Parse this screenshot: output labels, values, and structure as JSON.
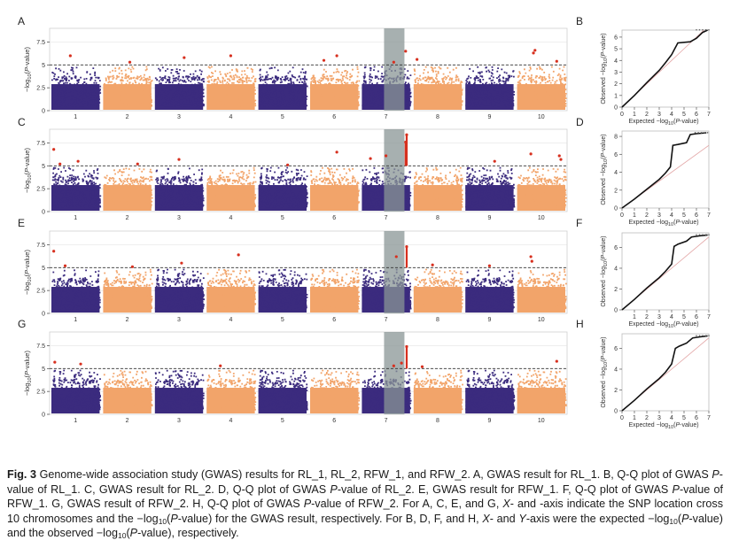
{
  "colors": {
    "chr_odd": "#3b2b7e",
    "chr_even": "#f2a46a",
    "significant": "#d7301f",
    "threshold_line": "#333333",
    "highlight_band": "#8a9696",
    "qq_points": "#111111",
    "qq_diagonal": "#e2a3a3",
    "grid": "#dddddd"
  },
  "chart_data": [
    {
      "type": "scatter",
      "subtype": "manhattan",
      "panel": "A",
      "xlabel": "",
      "ylabel_parts": [
        "−log",
        "10",
        "(",
        "P",
        "-value)"
      ],
      "chromosomes": [
        "1",
        "2",
        "3",
        "4",
        "5",
        "6",
        "7",
        "8",
        "9",
        "10"
      ],
      "yticks": [
        "0",
        "2.5",
        "5",
        "7.5"
      ],
      "ylim": [
        0,
        9
      ],
      "threshold": 5,
      "highlight_chromosome_position": 7.6,
      "peaks": [
        {
          "chr": 1,
          "pos": 0.4,
          "y": 6.0
        },
        {
          "chr": 2,
          "pos": 0.55,
          "y": 5.3
        },
        {
          "chr": 3,
          "pos": 0.6,
          "y": 5.8
        },
        {
          "chr": 4,
          "pos": 0.5,
          "y": 6.0
        },
        {
          "chr": 6,
          "pos": 0.3,
          "y": 5.5
        },
        {
          "chr": 6,
          "pos": 0.55,
          "y": 6.0
        },
        {
          "chr": 7,
          "pos": 0.65,
          "y": 5.3
        },
        {
          "chr": 7,
          "pos": 0.88,
          "y": 6.5
        },
        {
          "chr": 8,
          "pos": 0.1,
          "y": 5.6
        },
        {
          "chr": 10,
          "pos": 0.35,
          "y": 6.3
        },
        {
          "chr": 10,
          "pos": 0.38,
          "y": 6.6
        },
        {
          "chr": 10,
          "pos": 0.8,
          "y": 5.4
        }
      ]
    },
    {
      "type": "line",
      "subtype": "qq",
      "panel": "B",
      "xlabel_parts": [
        "Expected −log",
        "10",
        "(",
        "P",
        "-value)"
      ],
      "ylabel_parts": [
        "Observed −log",
        "10",
        "(",
        "P",
        "-value)"
      ],
      "xticks": [
        "0",
        "1",
        "2",
        "3",
        "4",
        "5",
        "6",
        "7"
      ],
      "yticks": [
        "0",
        "1",
        "2",
        "3",
        "4",
        "5",
        "6"
      ],
      "xlim": [
        0,
        7
      ],
      "ylim": [
        0,
        6.6
      ],
      "curve": [
        [
          0,
          0
        ],
        [
          1,
          1
        ],
        [
          2,
          2.1
        ],
        [
          3,
          3.15
        ],
        [
          3.5,
          3.8
        ],
        [
          4,
          4.5
        ],
        [
          4.3,
          5.1
        ],
        [
          4.5,
          5.5
        ],
        [
          5.5,
          5.6
        ],
        [
          6,
          5.9
        ],
        [
          6.5,
          6.4
        ],
        [
          6.9,
          6.6
        ]
      ]
    },
    {
      "type": "scatter",
      "subtype": "manhattan",
      "panel": "C",
      "xlabel": "",
      "ylabel_parts": [
        "−log",
        "10",
        "(",
        "P",
        "-value)"
      ],
      "chromosomes": [
        "1",
        "2",
        "3",
        "4",
        "5",
        "6",
        "7",
        "8",
        "9",
        "10"
      ],
      "yticks": [
        "0",
        "2.5",
        "5",
        "7.5"
      ],
      "ylim": [
        0,
        9
      ],
      "threshold": 5,
      "highlight_chromosome_position": 7.6,
      "peaks": [
        {
          "chr": 1,
          "pos": 0.08,
          "y": 6.8
        },
        {
          "chr": 1,
          "pos": 0.2,
          "y": 5.2
        },
        {
          "chr": 1,
          "pos": 0.55,
          "y": 5.5
        },
        {
          "chr": 2,
          "pos": 0.7,
          "y": 5.2
        },
        {
          "chr": 3,
          "pos": 0.5,
          "y": 5.7
        },
        {
          "chr": 5,
          "pos": 0.6,
          "y": 5.1
        },
        {
          "chr": 6,
          "pos": 0.55,
          "y": 6.5
        },
        {
          "chr": 7,
          "pos": 0.2,
          "y": 5.8
        },
        {
          "chr": 7,
          "pos": 0.5,
          "y": 6.1
        },
        {
          "chr": 7,
          "pos": 0.9,
          "y": 8.4
        },
        {
          "chr": 7,
          "pos": 0.88,
          "y": 7.6
        },
        {
          "chr": 9,
          "pos": 0.6,
          "y": 5.5
        },
        {
          "chr": 10,
          "pos": 0.3,
          "y": 6.3
        },
        {
          "chr": 10,
          "pos": 0.85,
          "y": 6.1
        },
        {
          "chr": 10,
          "pos": 0.88,
          "y": 5.7
        }
      ]
    },
    {
      "type": "line",
      "subtype": "qq",
      "panel": "D",
      "xlabel_parts": [
        "Expected −log",
        "10",
        "(",
        "P",
        "-value)"
      ],
      "ylabel_parts": [
        "Observed −log",
        "10",
        "(",
        "P",
        "-value)"
      ],
      "xticks": [
        "0",
        "1",
        "2",
        "3",
        "4",
        "5",
        "6",
        "7"
      ],
      "yticks": [
        "0",
        "2",
        "4",
        "6",
        "8"
      ],
      "xlim": [
        0,
        7
      ],
      "ylim": [
        0,
        8.6
      ],
      "curve": [
        [
          0,
          0
        ],
        [
          1,
          1
        ],
        [
          2,
          2.1
        ],
        [
          3,
          3.2
        ],
        [
          3.5,
          3.9
        ],
        [
          3.9,
          4.6
        ],
        [
          4.1,
          7.0
        ],
        [
          4.5,
          7.1
        ],
        [
          5.2,
          7.3
        ],
        [
          5.5,
          8.2
        ],
        [
          6,
          8.3
        ],
        [
          6.8,
          8.4
        ]
      ]
    },
    {
      "type": "scatter",
      "subtype": "manhattan",
      "panel": "E",
      "xlabel": "",
      "ylabel_parts": [
        "−log",
        "10",
        "(",
        "P",
        "-value)"
      ],
      "chromosomes": [
        "1",
        "2",
        "3",
        "4",
        "5",
        "6",
        "7",
        "8",
        "9",
        "10"
      ],
      "yticks": [
        "0",
        "2.5",
        "5",
        "7.5"
      ],
      "ylim": [
        0,
        9
      ],
      "threshold": 5,
      "highlight_chromosome_position": 7.6,
      "peaks": [
        {
          "chr": 1,
          "pos": 0.08,
          "y": 6.8
        },
        {
          "chr": 1,
          "pos": 0.3,
          "y": 5.2
        },
        {
          "chr": 2,
          "pos": 0.6,
          "y": 5.1
        },
        {
          "chr": 3,
          "pos": 0.55,
          "y": 5.5
        },
        {
          "chr": 4,
          "pos": 0.65,
          "y": 6.4
        },
        {
          "chr": 7,
          "pos": 0.7,
          "y": 6.2
        },
        {
          "chr": 7,
          "pos": 0.9,
          "y": 7.3
        },
        {
          "chr": 8,
          "pos": 0.4,
          "y": 5.3
        },
        {
          "chr": 9,
          "pos": 0.5,
          "y": 5.2
        },
        {
          "chr": 10,
          "pos": 0.3,
          "y": 6.2
        },
        {
          "chr": 10,
          "pos": 0.32,
          "y": 5.7
        }
      ]
    },
    {
      "type": "line",
      "subtype": "qq",
      "panel": "F",
      "xlabel_parts": [
        "Expected −log",
        "10",
        "(",
        "P",
        "-value)"
      ],
      "ylabel_parts": [
        "Observed −log",
        "10",
        "(",
        "P",
        "-value)"
      ],
      "xticks": [
        "1",
        "2",
        "3",
        "4",
        "5",
        "6",
        "7"
      ],
      "yticks": [
        "0",
        "2",
        "4",
        "6"
      ],
      "xlim": [
        0,
        7
      ],
      "ylim": [
        0,
        7.4
      ],
      "curve": [
        [
          0,
          0
        ],
        [
          1,
          1
        ],
        [
          2,
          2.1
        ],
        [
          3,
          3.1
        ],
        [
          3.5,
          3.7
        ],
        [
          4,
          4.4
        ],
        [
          4.2,
          6.1
        ],
        [
          4.5,
          6.3
        ],
        [
          5.2,
          6.6
        ],
        [
          5.6,
          7.0
        ],
        [
          6.2,
          7.1
        ],
        [
          6.9,
          7.2
        ]
      ]
    },
    {
      "type": "scatter",
      "subtype": "manhattan",
      "panel": "G",
      "xlabel": "",
      "ylabel_parts": [
        "−log",
        "10",
        "(",
        "P",
        "-value)"
      ],
      "chromosomes": [
        "1",
        "2",
        "3",
        "4",
        "5",
        "6",
        "7",
        "8",
        "9",
        "10"
      ],
      "yticks": [
        "0",
        "2.5",
        "5",
        "7.5"
      ],
      "ylim": [
        0,
        9
      ],
      "threshold": 5,
      "highlight_chromosome_position": 7.6,
      "peaks": [
        {
          "chr": 1,
          "pos": 0.1,
          "y": 5.7
        },
        {
          "chr": 1,
          "pos": 0.6,
          "y": 5.5
        },
        {
          "chr": 4,
          "pos": 0.3,
          "y": 5.3
        },
        {
          "chr": 7,
          "pos": 0.65,
          "y": 5.3
        },
        {
          "chr": 7,
          "pos": 0.8,
          "y": 5.6
        },
        {
          "chr": 7,
          "pos": 0.9,
          "y": 7.4
        },
        {
          "chr": 8,
          "pos": 0.2,
          "y": 5.2
        },
        {
          "chr": 10,
          "pos": 0.8,
          "y": 5.8
        }
      ]
    },
    {
      "type": "line",
      "subtype": "qq",
      "panel": "H",
      "xlabel_parts": [
        "Expected −log",
        "10",
        "(",
        "P",
        "-value)"
      ],
      "ylabel_parts": [
        "Observed −log",
        "10",
        "(",
        "P",
        "-value)"
      ],
      "xticks": [
        "0",
        "1",
        "2",
        "3",
        "4",
        "5",
        "6",
        "7"
      ],
      "yticks": [
        "0",
        "2",
        "4",
        "6"
      ],
      "xlim": [
        0,
        7
      ],
      "ylim": [
        0,
        7.4
      ],
      "curve": [
        [
          0,
          0
        ],
        [
          1,
          1
        ],
        [
          2,
          2.1
        ],
        [
          3,
          3.1
        ],
        [
          3.5,
          3.7
        ],
        [
          4,
          4.5
        ],
        [
          4.3,
          6.0
        ],
        [
          4.6,
          6.2
        ],
        [
          5.2,
          6.5
        ],
        [
          5.7,
          7.0
        ],
        [
          6.3,
          7.1
        ],
        [
          6.9,
          7.2
        ]
      ]
    }
  ],
  "caption": {
    "fig_label": "Fig. 3",
    "segments": [
      {
        "t": "  Genome-wide association study (GWAS) results for RL_1, RL_2, RFW_1, and RFW_2.  A, GWAS result for RL_1.  B, Q-Q plot of GWAS "
      },
      {
        "t": "P",
        "i": true
      },
      {
        "t": "-value of RL_1.  C, GWAS result for RL_2.  D, Q-Q plot of GWAS "
      },
      {
        "t": "P",
        "i": true
      },
      {
        "t": "-value of RL_2.  E, GWAS result for RFW_1.  F, Q-Q plot of GWAS "
      },
      {
        "t": "P",
        "i": true
      },
      {
        "t": "-value of RFW_1.  G, GWAS result of RFW_2.  H, Q-Q plot of GWAS "
      },
      {
        "t": "P",
        "i": true
      },
      {
        "t": "-value of RFW_2.  For A, C, E, and G, "
      },
      {
        "t": "X",
        "i": true
      },
      {
        "t": "- and -axis indicate the SNP location cross 10 chromosomes and the −log"
      },
      {
        "t": "10",
        "sub": true
      },
      {
        "t": "("
      },
      {
        "t": "P",
        "i": true
      },
      {
        "t": "-value) for the GWAS result, respectively.  For B, D, F, and H, "
      },
      {
        "t": "X",
        "i": true
      },
      {
        "t": "- and "
      },
      {
        "t": "Y",
        "i": true
      },
      {
        "t": "-axis were the expected −log"
      },
      {
        "t": "10",
        "sub": true
      },
      {
        "t": "("
      },
      {
        "t": "P",
        "i": true
      },
      {
        "t": "-value) and the observed −log"
      },
      {
        "t": "10",
        "sub": true
      },
      {
        "t": "("
      },
      {
        "t": "P",
        "i": true
      },
      {
        "t": "-value), respectively."
      }
    ]
  }
}
